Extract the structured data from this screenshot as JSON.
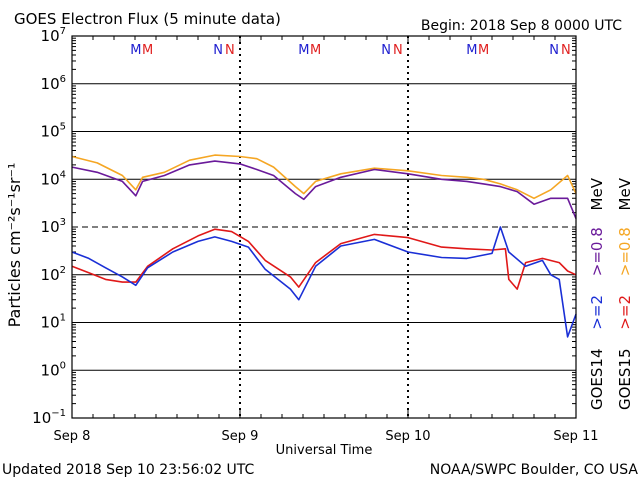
{
  "header": {
    "title": "GOES Electron Flux (5 minute data)",
    "begin": "Begin: 2018 Sep 8 0000 UTC"
  },
  "footer": {
    "updated": "Updated 2018 Sep 10 23:56:02 UTC",
    "credit": "NOAA/SWPC Boulder, CO USA"
  },
  "axes": {
    "xlabel": "Universal Time",
    "ylabel": "Particles cm⁻²s⁻¹sr⁻¹",
    "x_ticks": [
      "Sep 8",
      "Sep 9",
      "Sep 10",
      "Sep 11"
    ],
    "y_ticks": [
      {
        "base": "10",
        "exp": "7"
      },
      {
        "base": "10",
        "exp": "6"
      },
      {
        "base": "10",
        "exp": "5"
      },
      {
        "base": "10",
        "exp": "4"
      },
      {
        "base": "10",
        "exp": "3"
      },
      {
        "base": "10",
        "exp": "2"
      },
      {
        "base": "10",
        "exp": "1"
      },
      {
        "base": "10",
        "exp": "0"
      },
      {
        "base": "10",
        "exp": "−1"
      }
    ]
  },
  "legend": {
    "goes14": {
      "sat": "GOES14",
      "a": ">=2",
      "b": ">=0.8",
      "unit": "MeV"
    },
    "goes15": {
      "sat": "GOES15",
      "a": ">=2",
      "b": ">=0.8",
      "unit": "MeV"
    }
  },
  "markers": [
    {
      "t": "M",
      "color": "#2020d0",
      "day": 0.38
    },
    {
      "t": "M",
      "color": "#e02020",
      "day": 0.45
    },
    {
      "t": "N",
      "color": "#2020d0",
      "day": 0.87
    },
    {
      "t": "N",
      "color": "#e02020",
      "day": 0.94
    },
    {
      "t": "M",
      "color": "#2020d0",
      "day": 1.38
    },
    {
      "t": "M",
      "color": "#e02020",
      "day": 1.45
    },
    {
      "t": "N",
      "color": "#2020d0",
      "day": 1.87
    },
    {
      "t": "N",
      "color": "#e02020",
      "day": 1.94
    },
    {
      "t": "M",
      "color": "#2020d0",
      "day": 2.38
    },
    {
      "t": "M",
      "color": "#e02020",
      "day": 2.45
    },
    {
      "t": "N",
      "color": "#2020d0",
      "day": 2.87
    },
    {
      "t": "N",
      "color": "#e02020",
      "day": 2.94
    }
  ],
  "colors": {
    "goes14_2mev": "#1a2fd6",
    "goes14_08mev": "#6a1a9a",
    "goes15_2mev": "#e01818",
    "goes15_08mev": "#f5a623",
    "threshold_line": "#000000"
  },
  "chart_data": {
    "type": "line",
    "yscale": "log",
    "xlim": [
      0,
      3
    ],
    "ylim": [
      0.1,
      10000000
    ],
    "x_unit": "days since 2018 Sep 8 0000 UTC",
    "reference_line": 1000,
    "series": [
      {
        "name": "GOES15 >=0.8 MeV",
        "color": "#f5a623",
        "points": [
          [
            0,
            30000
          ],
          [
            0.15,
            22000
          ],
          [
            0.3,
            12000
          ],
          [
            0.38,
            6000
          ],
          [
            0.42,
            11000
          ],
          [
            0.55,
            14000
          ],
          [
            0.7,
            25000
          ],
          [
            0.85,
            32000
          ],
          [
            1.0,
            30000
          ],
          [
            1.1,
            27000
          ],
          [
            1.2,
            18000
          ],
          [
            1.33,
            7000
          ],
          [
            1.38,
            5000
          ],
          [
            1.45,
            9000
          ],
          [
            1.6,
            13000
          ],
          [
            1.8,
            17000
          ],
          [
            2.0,
            15000
          ],
          [
            2.2,
            12000
          ],
          [
            2.35,
            11000
          ],
          [
            2.45,
            10000
          ],
          [
            2.55,
            8000
          ],
          [
            2.65,
            6000
          ],
          [
            2.75,
            4000
          ],
          [
            2.85,
            6000
          ],
          [
            2.95,
            12000
          ],
          [
            3.0,
            5000
          ]
        ]
      },
      {
        "name": "GOES14 >=0.8 MeV",
        "color": "#6a1a9a",
        "points": [
          [
            0,
            18000
          ],
          [
            0.15,
            14000
          ],
          [
            0.3,
            9000
          ],
          [
            0.38,
            4500
          ],
          [
            0.42,
            9000
          ],
          [
            0.55,
            12000
          ],
          [
            0.7,
            20000
          ],
          [
            0.85,
            24000
          ],
          [
            1.0,
            21000
          ],
          [
            1.1,
            16000
          ],
          [
            1.2,
            12000
          ],
          [
            1.33,
            5000
          ],
          [
            1.38,
            3800
          ],
          [
            1.45,
            7000
          ],
          [
            1.6,
            11000
          ],
          [
            1.8,
            16000
          ],
          [
            2.0,
            13000
          ],
          [
            2.2,
            10000
          ],
          [
            2.35,
            9000
          ],
          [
            2.45,
            8000
          ],
          [
            2.55,
            7000
          ],
          [
            2.65,
            5500
          ],
          [
            2.75,
            3000
          ],
          [
            2.85,
            4000
          ],
          [
            2.95,
            4000
          ],
          [
            3.0,
            1500
          ]
        ]
      },
      {
        "name": "GOES15 >=2 MeV",
        "color": "#e01818",
        "points": [
          [
            0,
            150
          ],
          [
            0.1,
            110
          ],
          [
            0.2,
            80
          ],
          [
            0.3,
            70
          ],
          [
            0.38,
            70
          ],
          [
            0.45,
            150
          ],
          [
            0.6,
            350
          ],
          [
            0.75,
            650
          ],
          [
            0.85,
            900
          ],
          [
            0.95,
            800
          ],
          [
            1.05,
            500
          ],
          [
            1.15,
            200
          ],
          [
            1.3,
            90
          ],
          [
            1.35,
            55
          ],
          [
            1.45,
            180
          ],
          [
            1.6,
            450
          ],
          [
            1.8,
            700
          ],
          [
            2.0,
            600
          ],
          [
            2.2,
            380
          ],
          [
            2.35,
            350
          ],
          [
            2.5,
            330
          ],
          [
            2.58,
            350
          ],
          [
            2.6,
            80
          ],
          [
            2.65,
            50
          ],
          [
            2.7,
            180
          ],
          [
            2.8,
            220
          ],
          [
            2.9,
            180
          ],
          [
            2.95,
            120
          ],
          [
            3.0,
            100
          ]
        ]
      },
      {
        "name": "GOES14 >=2 MeV",
        "color": "#1a2fd6",
        "points": [
          [
            0,
            300
          ],
          [
            0.1,
            220
          ],
          [
            0.2,
            140
          ],
          [
            0.3,
            90
          ],
          [
            0.38,
            60
          ],
          [
            0.45,
            140
          ],
          [
            0.6,
            300
          ],
          [
            0.75,
            500
          ],
          [
            0.85,
            620
          ],
          [
            0.95,
            500
          ],
          [
            1.05,
            380
          ],
          [
            1.15,
            130
          ],
          [
            1.3,
            50
          ],
          [
            1.35,
            30
          ],
          [
            1.45,
            150
          ],
          [
            1.6,
            400
          ],
          [
            1.8,
            550
          ],
          [
            2.0,
            300
          ],
          [
            2.2,
            230
          ],
          [
            2.35,
            220
          ],
          [
            2.5,
            280
          ],
          [
            2.55,
            1000
          ],
          [
            2.6,
            300
          ],
          [
            2.7,
            150
          ],
          [
            2.8,
            200
          ],
          [
            2.85,
            100
          ],
          [
            2.9,
            80
          ],
          [
            2.95,
            5
          ],
          [
            3.0,
            15
          ]
        ]
      }
    ]
  }
}
